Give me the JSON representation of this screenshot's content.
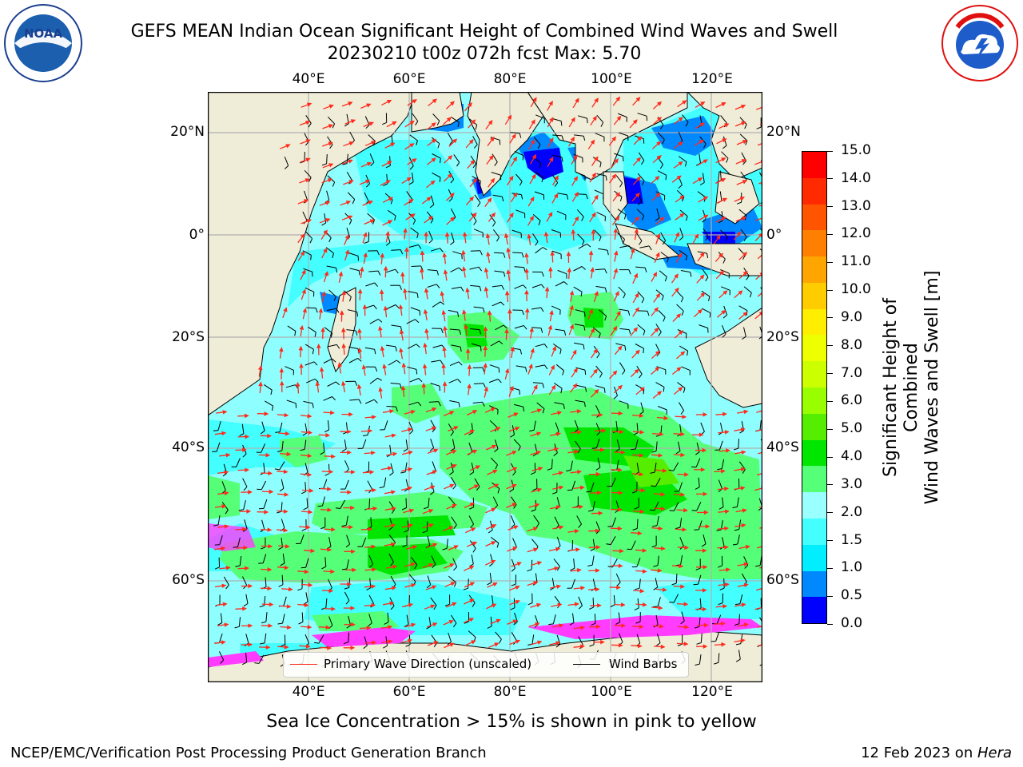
{
  "title": {
    "line1": "GEFS MEAN Indian Ocean Significant Height of Combined Wind Waves and Swell",
    "line2": "20230210 t00z 072h fcst   Max: 5.70"
  },
  "logos": {
    "left": "NOAA",
    "left_ring": "NATIONAL OCEANIC AND ATMOSPHERIC ADMINISTRATION · U.S. DEPARTMENT OF COMMERCE",
    "right_ring": "NATIONAL WEATHER SERVICE"
  },
  "map": {
    "lon_ticks_top": [
      "40°E",
      "60°E",
      "80°E",
      "100°E",
      "120°E"
    ],
    "lon_ticks_bottom": [
      "40°E",
      "60°E",
      "80°E",
      "100°E",
      "120°E"
    ],
    "lat_ticks_left": [
      "20°N",
      "0°",
      "20°S",
      "40°S",
      "60°S"
    ],
    "lat_ticks_right": [
      "20°N",
      "0°",
      "20°S",
      "40°S",
      "60°S"
    ],
    "colors": {
      "land": "#efedd8",
      "ocean_low": "#8efffe",
      "wave_arrow": "#ff2a1c",
      "wind_barb": "#000000",
      "ice": "#ff3cff"
    }
  },
  "colorbar": {
    "ticks": [
      "15.0",
      "14.0",
      "13.0",
      "12.0",
      "11.0",
      "10.0",
      "9.0",
      "8.0",
      "7.0",
      "6.0",
      "5.0",
      "4.0",
      "3.0",
      "2.0",
      "1.5",
      "1.0",
      "0.5",
      "0.0"
    ],
    "colors": [
      "#ff0000",
      "#ff2a00",
      "#ff5500",
      "#ff8000",
      "#ffa500",
      "#ffcc00",
      "#ffee00",
      "#eeff00",
      "#ccff00",
      "#99ff00",
      "#55ee00",
      "#00e600",
      "#55ff77",
      "#99ffff",
      "#44ffff",
      "#00eeff",
      "#0088ff",
      "#0000ff"
    ],
    "label_line1": "Significant Height of Combined",
    "label_line2": "Wind Waves and Swell [m]"
  },
  "legend": {
    "wave_direction": "Primary Wave Direction (unscaled)",
    "wind_barbs": "Wind Barbs"
  },
  "caption": "Sea Ice Concentration > 15% is shown in pink to yellow",
  "footer": {
    "left": "NCEP/EMC/Verification Post Processing Product Generation Branch",
    "right_date": "12 Feb 2023 on ",
    "right_host": "Hera"
  }
}
